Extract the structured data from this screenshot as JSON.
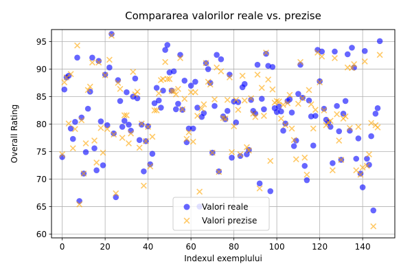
{
  "chart_data": {
    "type": "scatter",
    "title": "Compararea valorilor reale vs. prezise",
    "xlabel": "Indexul exemplului",
    "ylabel": "Overall Rating",
    "xlim": [
      -5,
      155
    ],
    "ylim": [
      59.3,
      97.2
    ],
    "xticks": [
      0,
      20,
      40,
      60,
      80,
      100,
      120,
      140
    ],
    "yticks": [
      60,
      65,
      70,
      75,
      80,
      85,
      90,
      95
    ],
    "grid": true,
    "legend_position": "bottom-right",
    "series": [
      {
        "name": "Valori reale",
        "color": "#0000ff",
        "values": [
          74,
          86.3,
          88.5,
          88.8,
          79.2,
          77.3,
          80.4,
          92.1,
          66,
          81.2,
          71,
          74.9,
          82.8,
          85.9,
          92.1,
          75.6,
          71.6,
          91.5,
          80.5,
          72.5,
          89,
          79.8,
          90.3,
          96.4,
          78.3,
          66.7,
          88,
          84.2,
          79.5,
          80.6,
          85.8,
          79.9,
          78.8,
          85,
          88.3,
          84.7,
          77.1,
          79.9,
          71.4,
          76.9,
          79.6,
          72.7,
          74.6,
          83.8,
          86.6,
          84.3,
          83,
          86.1,
          93.5,
          94.4,
          89.4,
          86.1,
          89.6,
          82.7,
          83.7,
          92.6,
          82.6,
          87.9,
          76.7,
          79.2,
          87,
          79.2,
          87.7,
          83,
          65,
          81.3,
          82,
          91.1,
          90,
          87.5,
          74.8,
          83.3,
          92.6,
          71.4,
          91.8,
          81.4,
          80.9,
          82.4,
          89,
          73.9,
          84.1,
          80.3,
          84,
          74.2,
          86.7,
          87.3,
          74.5,
          75.3,
          84.4,
          82.4,
          81.9,
          90.8,
          69.2,
          84.6,
          82.7,
          92.8,
          90.6,
          67.8,
          90.4,
          82.9,
          82.2,
          83.2,
          82.3,
          78.8,
          80.1,
          84.2,
          84.5,
          82.1,
          76,
          77,
          85.5,
          90.8,
          84.8,
          72.4,
          69.8,
          84.3,
          81.4,
          76.1,
          81.5,
          93.5,
          87.8,
          93.2,
          82.8,
          80.8,
          80.3,
          79.5,
          72.9,
          93.2,
          83.3,
          78.7,
          73.5,
          81.9,
          84.2,
          92.7,
          78.8,
          93.9,
          90.3,
          73.7,
          77.4,
          71,
          68.5,
          93.3,
          73.7,
          72.6,
          77.8,
          64.3,
          81.9,
          82.9,
          95.1
        ]
      },
      {
        "name": "Valori prezise",
        "color": "#ffa500",
        "values": [
          74.5,
          87.6,
          88.5,
          80.1,
          89.1,
          75.6,
          79.1,
          94.3,
          65.4,
          80.7,
          71,
          76.5,
          86.2,
          86.8,
          91.2,
          77,
          73,
          91.2,
          79.3,
          74.8,
          88.9,
          79.1,
          91.7,
          96.1,
          78.1,
          67.4,
          87.5,
          86.4,
          77.5,
          81.6,
          81.6,
          76.5,
          78.3,
          89.5,
          85.4,
          85.9,
          75.7,
          80.1,
          68.8,
          76.9,
          79.5,
          72.3,
          77.7,
          82.5,
          82.5,
          85.6,
          88,
          88.2,
          91.3,
          88.2,
          88.2,
          86,
          86,
          85.4,
          86.4,
          92,
          82.7,
          84.6,
          77.3,
          78.5,
          85.8,
          76.8,
          85.8,
          81.5,
          67.7,
          82.8,
          83.6,
          91.1,
          87.7,
          87.2,
          74.8,
          84.5,
          90.3,
          71.3,
          89.6,
          81.1,
          81,
          84.4,
          88.5,
          74.9,
          79.6,
          84.4,
          82.6,
          74.5,
          88.8,
          84.3,
          75.8,
          75.2,
          84.7,
          81.9,
          81.3,
          89,
          68.3,
          86.6,
          81.5,
          93,
          88.1,
          73.3,
          86.3,
          83.9,
          84.2,
          84.1,
          81,
          83.5,
          79.8,
          83.8,
          85.3,
          79.2,
          77.1,
          73.6,
          83.7,
          91.3,
          84.7,
          73.9,
          70.8,
          86.2,
          83.6,
          79.2,
          82.6,
          93,
          87.6,
          92.3,
          82.5,
          79.8,
          80.3,
          80.6,
          71.6,
          92,
          81.8,
          77,
          73.5,
          81,
          81.4,
          90.3,
          79.3,
          90.2,
          90.9,
          71.6,
          79.5,
          70.8,
          72.1,
          91.4,
          72.4,
          74.5,
          80.2,
          61.4,
          79.8,
          79.4,
          92.6
        ]
      }
    ]
  }
}
